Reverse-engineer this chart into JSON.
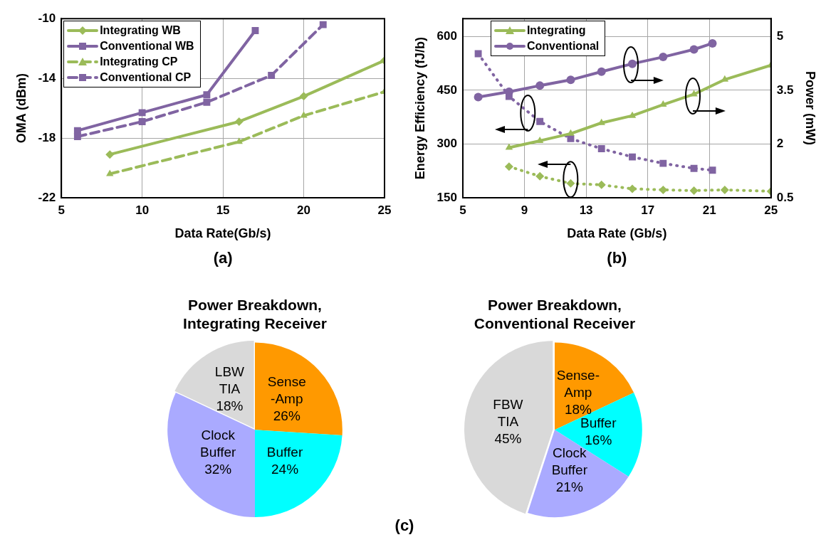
{
  "chart_data": [
    {
      "type": "line",
      "xlabel": "Data Rate(Gb/s)",
      "ylabel": "OMA (dBm)",
      "xlim": [
        5,
        25
      ],
      "xticks": [
        5,
        10,
        15,
        20,
        25
      ],
      "ylim": [
        -22,
        -10
      ],
      "yticks": [
        -22,
        -18,
        -14,
        -10
      ],
      "grid": true,
      "legend": "top left",
      "annotations": [
        "(a)"
      ],
      "series": [
        {
          "name": "Integrating WB",
          "color": "#9bbb59",
          "marker": "diamond",
          "line_style": "solid",
          "x": [
            8,
            16,
            20,
            25
          ],
          "values": [
            -19.1,
            -16.9,
            -15.2,
            -12.8
          ]
        },
        {
          "name": "Conventional WB",
          "color": "#8064a2",
          "marker": "square",
          "line_style": "solid",
          "x": [
            6,
            10,
            14,
            17
          ],
          "values": [
            -17.5,
            -16.3,
            -15.1,
            -10.8
          ]
        },
        {
          "name": "Integrating CP",
          "color": "#9bbb59",
          "marker": "triangle",
          "line_style": "dashed",
          "x": [
            8,
            16,
            20,
            25
          ],
          "values": [
            -20.4,
            -18.25,
            -16.5,
            -14.9
          ]
        },
        {
          "name": "Conventional CP",
          "color": "#8064a2",
          "marker": "square",
          "line_style": "dashed",
          "x": [
            6,
            10,
            14,
            18,
            21.2
          ],
          "values": [
            -17.9,
            -16.9,
            -15.6,
            -13.8,
            -10.4
          ]
        }
      ]
    },
    {
      "type": "line",
      "xlabel": "Data Rate (Gb/s)",
      "ylabel": "Energy Efficiency (fJ/b)",
      "y2label": "Power (mW)",
      "xlim": [
        5,
        25
      ],
      "xticks": [
        5,
        9,
        13,
        17,
        21,
        25
      ],
      "ylim": [
        150,
        650
      ],
      "yticks": [
        150,
        300,
        450,
        600
      ],
      "y2lim": [
        0.5,
        5.5
      ],
      "y2ticks": [
        0.5,
        2,
        3.5,
        5
      ],
      "grid": true,
      "legend": "top left",
      "annotations": [
        "(b)"
      ],
      "series": [
        {
          "name": "Integrating",
          "color": "#9bbb59",
          "marker": "triangle",
          "line_style": "solid",
          "axis": "y2",
          "x": [
            8,
            10,
            12,
            14,
            16,
            18,
            20,
            22,
            25
          ],
          "values": [
            1.9,
            2.09,
            2.29,
            2.59,
            2.79,
            3.1,
            3.39,
            3.8,
            4.2
          ]
        },
        {
          "name": "Conventional",
          "color": "#8064a2",
          "marker": "circle",
          "line_style": "solid",
          "axis": "y2",
          "x": [
            6,
            8,
            10,
            12,
            14,
            16,
            18,
            20,
            21.2
          ],
          "values": [
            3.31,
            3.46,
            3.63,
            3.79,
            4.02,
            4.24,
            4.43,
            4.64,
            4.81
          ]
        },
        {
          "color": "#8064a2",
          "marker": "square",
          "line_style": "dotted",
          "axis": "y",
          "x": [
            6,
            8,
            10,
            12,
            14,
            16,
            18,
            20,
            21.2
          ],
          "values": [
            552,
            433,
            363,
            315,
            287,
            264,
            246,
            232,
            227
          ]
        },
        {
          "color": "#9bbb59",
          "marker": "diamond",
          "line_style": "dotted",
          "axis": "y",
          "x": [
            8,
            10,
            12,
            14,
            16,
            18,
            20,
            22,
            25
          ],
          "values": [
            237,
            210,
            190,
            186,
            175,
            172,
            170,
            172,
            168
          ]
        }
      ]
    },
    {
      "type": "pie",
      "title": "Power Breakdown,\nIntegrating Receiver",
      "annotations": [
        "(c)"
      ],
      "categories": [
        "Sense\n-Amp",
        "Buffer",
        "Clock\nBuffer",
        "LBW\nTIA"
      ],
      "values": [
        26,
        24,
        32,
        18
      ],
      "value_labels": [
        "26%",
        "24%",
        "32%",
        "18%"
      ],
      "colors": [
        "#ff9900",
        "#00ffff",
        "#aaaaff",
        "#d9d9d9"
      ]
    },
    {
      "type": "pie",
      "title": "Power Breakdown,\nConventional Receiver",
      "categories": [
        "Sense-\nAmp",
        "Buffer",
        "Clock\nBuffer",
        "FBW\nTIA"
      ],
      "values": [
        18,
        16,
        21,
        45
      ],
      "value_labels": [
        "18%",
        "16%",
        "21%",
        "45%"
      ],
      "colors": [
        "#ff9900",
        "#00ffff",
        "#aaaaff",
        "#d9d9d9"
      ]
    }
  ]
}
